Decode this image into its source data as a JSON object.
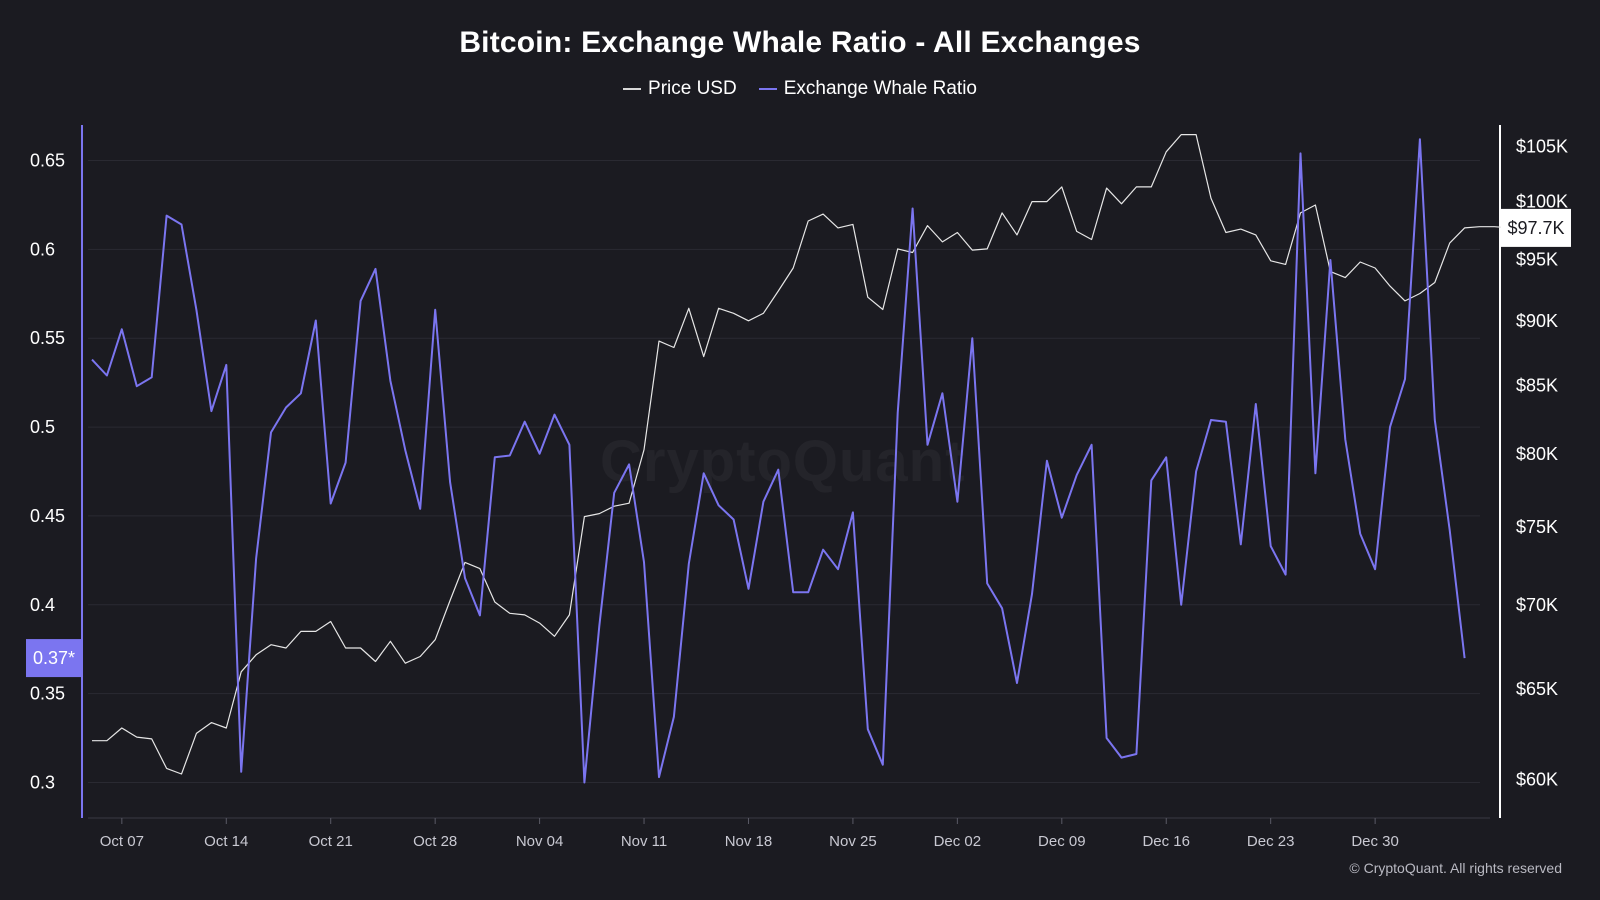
{
  "chart_data": {
    "type": "line",
    "title": "Bitcoin: Exchange Whale Ratio - All Exchanges",
    "watermark": "CryptoQuant",
    "copyright": "© CryptoQuant. All rights reserved",
    "x_ticks": [
      "Oct 07",
      "Oct 14",
      "Oct 21",
      "Oct 28",
      "Nov 04",
      "Nov 11",
      "Nov 18",
      "Nov 25",
      "Dec 02",
      "Dec 09",
      "Dec 16",
      "Dec 23",
      "Dec 30"
    ],
    "x_start": "2024-10-05",
    "y_left": {
      "ticks": [
        "0.3",
        "0.35",
        "0.4",
        "0.45",
        "0.5",
        "0.55",
        "0.6",
        "0.65"
      ],
      "range": [
        0.28,
        0.67
      ]
    },
    "y_right": {
      "ticks": [
        "$60K",
        "$65K",
        "$70K",
        "$75K",
        "$80K",
        "$85K",
        "$90K",
        "$95K",
        "$100K",
        "$105K"
      ],
      "range": [
        58000,
        107000
      ],
      "scale": "log"
    },
    "last_value_labels": {
      "whale_ratio": "0.37*",
      "price": "$97.7K"
    },
    "series": [
      {
        "name": "Price USD",
        "axis": "right",
        "color": "#ffffff",
        "values": [
          62100,
          62100,
          62800,
          62300,
          62200,
          60600,
          60300,
          62500,
          63100,
          62800,
          66000,
          67000,
          67600,
          67400,
          68400,
          68400,
          69000,
          67400,
          67400,
          66600,
          67800,
          66500,
          66900,
          67900,
          70300,
          72700,
          72300,
          70200,
          69500,
          69400,
          68900,
          68100,
          69400,
          75700,
          75900,
          76400,
          76600,
          80300,
          88400,
          87900,
          91000,
          87200,
          91000,
          90600,
          90000,
          90600,
          92400,
          94300,
          98300,
          98900,
          97700,
          98000,
          91900,
          90900,
          95900,
          95600,
          97900,
          96500,
          97300,
          95800,
          95900,
          99000,
          97100,
          100000,
          100000,
          101300,
          97400,
          96700,
          101200,
          99800,
          101300,
          101300,
          104500,
          106100,
          106100,
          100300,
          97300,
          97600,
          97100,
          94900,
          94600,
          99000,
          99700,
          94000,
          93500,
          94800,
          94300,
          92800,
          91600,
          92200,
          93100,
          96400,
          97700,
          97800,
          97800,
          97700
        ]
      },
      {
        "name": "Exchange Whale Ratio",
        "axis": "left",
        "color": "#7b75f0",
        "values": [
          0.538,
          0.529,
          0.555,
          0.523,
          0.528,
          0.619,
          0.614,
          0.566,
          0.509,
          0.535,
          0.306,
          0.426,
          0.497,
          0.511,
          0.519,
          0.56,
          0.457,
          0.48,
          0.571,
          0.589,
          0.526,
          0.487,
          0.454,
          0.566,
          0.469,
          0.415,
          0.394,
          0.483,
          0.484,
          0.503,
          0.485,
          0.507,
          0.49,
          0.3,
          0.388,
          0.463,
          0.479,
          0.424,
          0.303,
          0.337,
          0.423,
          0.474,
          0.456,
          0.448,
          0.409,
          0.458,
          0.476,
          0.407,
          0.407,
          0.431,
          0.42,
          0.452,
          0.33,
          0.31,
          0.508,
          0.623,
          0.49,
          0.519,
          0.458,
          0.55,
          0.412,
          0.398,
          0.356,
          0.406,
          0.481,
          0.449,
          0.473,
          0.49,
          0.325,
          0.314,
          0.316,
          0.47,
          0.483,
          0.4,
          0.475,
          0.504,
          0.503,
          0.434,
          0.513,
          0.433,
          0.417,
          0.654,
          0.474,
          0.594,
          0.493,
          0.44,
          0.42,
          0.5,
          0.527,
          0.662,
          0.504,
          0.442,
          0.37
        ]
      }
    ]
  }
}
